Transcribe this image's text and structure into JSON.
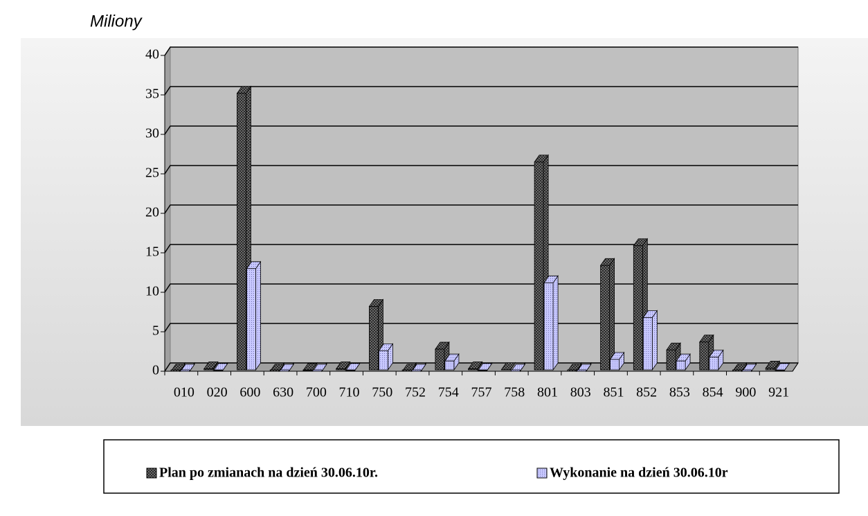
{
  "chart_data": {
    "type": "bar3d",
    "y_label": "Miliony",
    "categories": [
      "010",
      "020",
      "600",
      "630",
      "700",
      "710",
      "750",
      "752",
      "754",
      "757",
      "758",
      "801",
      "803",
      "851",
      "852",
      "853",
      "854",
      "900",
      "921"
    ],
    "series": [
      {
        "name": "Plan po zmianach na dzień 30.06.10r.",
        "color": "#555555",
        "values": [
          0,
          0.3,
          35.2,
          0,
          0.1,
          0.3,
          8.2,
          0,
          2.8,
          0.3,
          0.2,
          26.5,
          0,
          13.4,
          15.9,
          2.7,
          3.7,
          0,
          0.4
        ]
      },
      {
        "name": "Wykonanie na dzień 30.06.10r",
        "color": "#c8c8ff",
        "values": [
          0,
          0.1,
          13.0,
          0,
          0,
          0.1,
          2.6,
          0,
          1.3,
          0.1,
          0,
          11.2,
          0,
          1.5,
          6.8,
          1.3,
          1.8,
          0,
          0.1
        ]
      }
    ],
    "ylim": [
      0,
      40
    ],
    "yticks": [
      0,
      5,
      10,
      15,
      20,
      25,
      30,
      35,
      40
    ],
    "grid": true
  }
}
